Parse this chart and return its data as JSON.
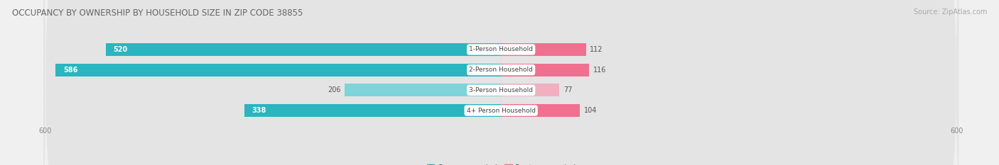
{
  "title": "OCCUPANCY BY OWNERSHIP BY HOUSEHOLD SIZE IN ZIP CODE 38855",
  "source": "Source: ZipAtlas.com",
  "categories": [
    "1-Person Household",
    "2-Person Household",
    "3-Person Household",
    "4+ Person Household"
  ],
  "owner_values": [
    520,
    586,
    206,
    338
  ],
  "renter_values": [
    112,
    116,
    77,
    104
  ],
  "owner_color_dark": "#2ab5c0",
  "owner_color_light": "#7dd4da",
  "renter_color_dark": "#f07090",
  "renter_color_light": "#f0b0c0",
  "axis_max": 600,
  "axis_min": -600,
  "bg_color": "#f0f0f0",
  "row_bg_color": "#e8e8e8",
  "title_fontsize": 8.5,
  "source_fontsize": 7,
  "tick_fontsize": 7,
  "legend_fontsize": 7.5,
  "bar_label_fontsize": 7,
  "category_label_fontsize": 6.5,
  "bar_height": 0.62,
  "owner_inside_threshold": 300
}
